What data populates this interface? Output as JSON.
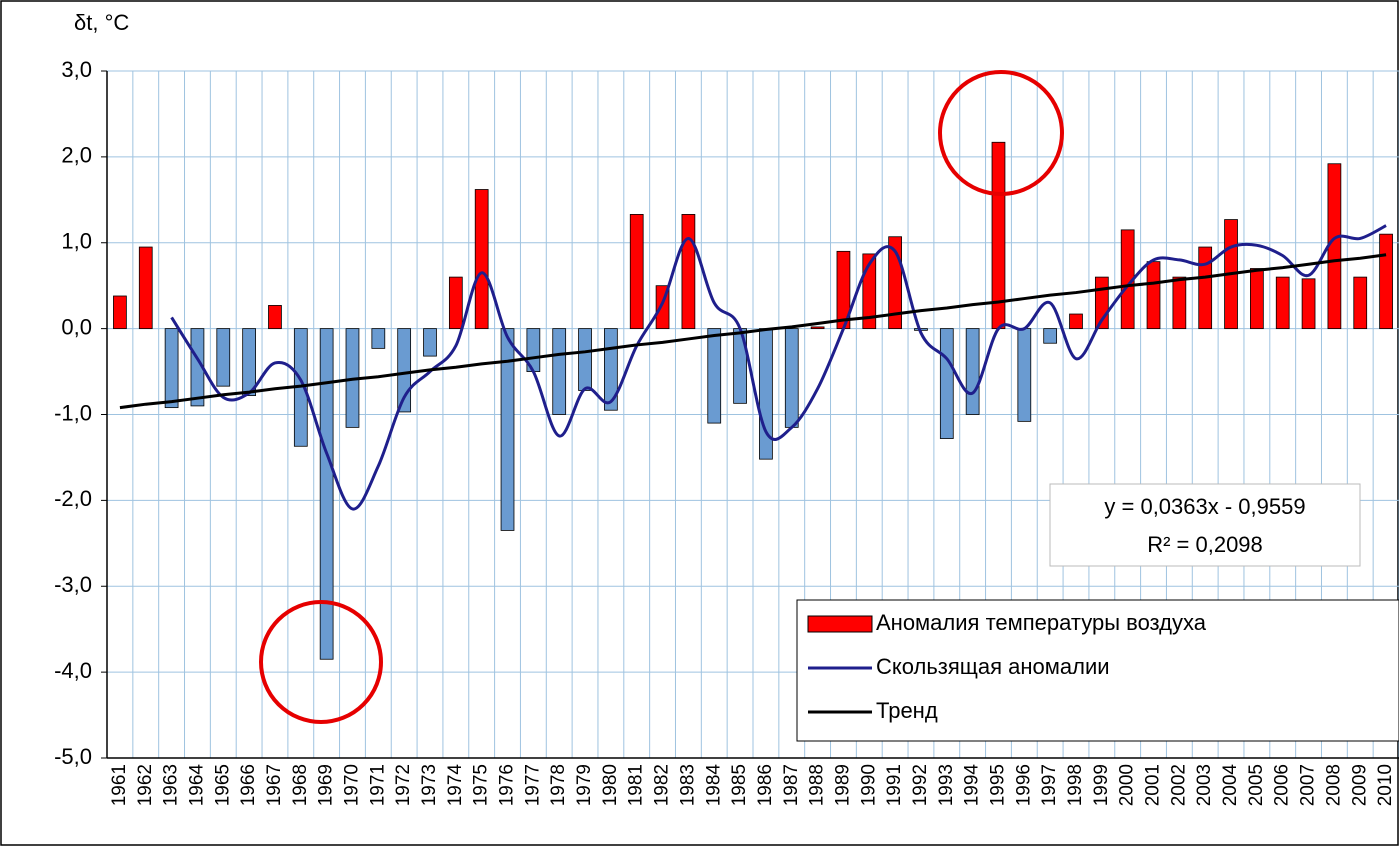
{
  "chart_data": {
    "type": "bar",
    "y_label": "δt, °C",
    "categories": [
      "1961",
      "1962",
      "1963",
      "1964",
      "1965",
      "1966",
      "1967",
      "1968",
      "1969",
      "1970",
      "1971",
      "1972",
      "1973",
      "1974",
      "1975",
      "1976",
      "1977",
      "1978",
      "1979",
      "1980",
      "1981",
      "1982",
      "1983",
      "1984",
      "1985",
      "1986",
      "1987",
      "1988",
      "1989",
      "1990",
      "1991",
      "1992",
      "1993",
      "1994",
      "1995",
      "1996",
      "1997",
      "1998",
      "1999",
      "2000",
      "2001",
      "2002",
      "2003",
      "2004",
      "2005",
      "2006",
      "2007",
      "2008",
      "2009",
      "2010"
    ],
    "series": [
      {
        "name": "Аномалия температуры воздуха",
        "color": "#ff0000",
        "negative_color": "#6a9bd1",
        "values": [
          0.38,
          0.95,
          -0.92,
          -0.9,
          -0.67,
          -0.78,
          0.27,
          -1.37,
          -3.85,
          -1.15,
          -0.23,
          -0.97,
          -0.32,
          0.6,
          1.62,
          -2.35,
          -0.5,
          -1.0,
          -0.72,
          -0.95,
          1.33,
          0.5,
          1.33,
          -1.1,
          -0.87,
          -1.52,
          -1.15,
          0.02,
          0.9,
          0.87,
          1.07,
          -0.02,
          -1.28,
          -1.0,
          2.17,
          -1.08,
          -0.17,
          0.17,
          0.6,
          1.15,
          0.78,
          0.6,
          0.95,
          1.27,
          0.7,
          0.6,
          0.58,
          1.92,
          0.6,
          1.1
        ]
      },
      {
        "name": "Скользящая аномалии",
        "color": "#1f1f8c",
        "values": [
          null,
          null,
          0.13,
          -0.35,
          -0.8,
          -0.75,
          -0.4,
          -0.6,
          -1.45,
          -2.1,
          -1.6,
          -0.8,
          -0.5,
          -0.2,
          0.65,
          -0.1,
          -0.5,
          -1.25,
          -0.7,
          -0.85,
          -0.2,
          0.3,
          1.05,
          0.3,
          0.0,
          -1.2,
          -1.15,
          -0.7,
          0.0,
          0.75,
          0.9,
          -0.05,
          -0.35,
          -0.75,
          0.0,
          0.0,
          0.3,
          -0.35,
          0.1,
          0.5,
          0.8,
          0.8,
          0.75,
          0.95,
          0.97,
          0.85,
          0.62,
          1.05,
          1.05,
          1.2
        ]
      },
      {
        "name": "Тренд",
        "color": "#000000",
        "values": [
          -0.92,
          -0.88,
          -0.85,
          -0.81,
          -0.77,
          -0.74,
          -0.7,
          -0.67,
          -0.63,
          -0.59,
          -0.56,
          -0.52,
          -0.48,
          -0.45,
          -0.41,
          -0.38,
          -0.34,
          -0.3,
          -0.27,
          -0.23,
          -0.19,
          -0.16,
          -0.12,
          -0.08,
          -0.05,
          -0.01,
          0.02,
          0.06,
          0.1,
          0.13,
          0.17,
          0.21,
          0.24,
          0.28,
          0.31,
          0.35,
          0.39,
          0.42,
          0.46,
          0.5,
          0.53,
          0.57,
          0.6,
          0.64,
          0.68,
          0.71,
          0.75,
          0.79,
          0.82,
          0.86
        ]
      }
    ],
    "ylim": [
      -5,
      3
    ],
    "yticks": [
      {
        "value": -5,
        "label": "-5,0"
      },
      {
        "value": -4,
        "label": "-4,0"
      },
      {
        "value": -3,
        "label": "-3,0"
      },
      {
        "value": -2,
        "label": "-2,0"
      },
      {
        "value": -1,
        "label": "-1,0"
      },
      {
        "value": 0,
        "label": "0,0"
      },
      {
        "value": 1,
        "label": "1,0"
      },
      {
        "value": 2,
        "label": "2,0"
      },
      {
        "value": 3,
        "label": "3,0"
      }
    ],
    "grid": true,
    "annotations": [
      "y = 0,0363x - 0,9559",
      "R² = 0,2098"
    ]
  }
}
